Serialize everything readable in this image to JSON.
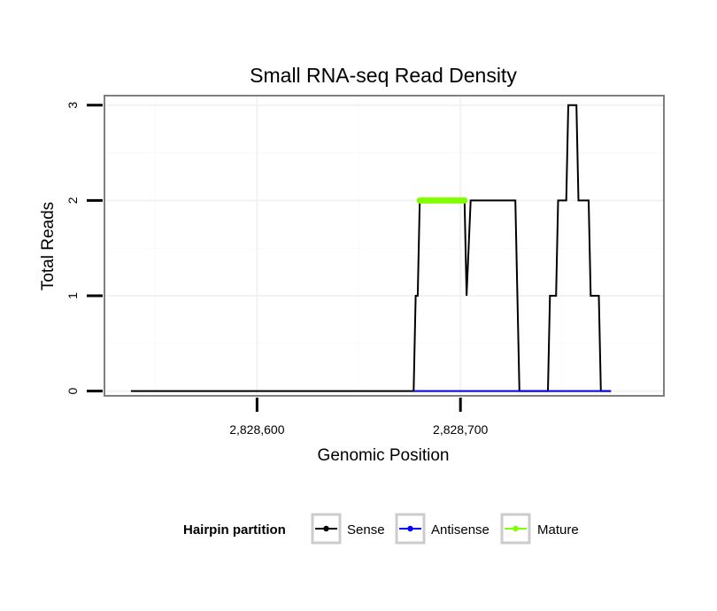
{
  "chart_data": {
    "type": "line",
    "title": "Small RNA-seq Read Density",
    "xlabel": "Genomic Position",
    "ylabel": "Total Reads",
    "xlim": [
      2828525,
      2828800
    ],
    "ylim": [
      -0.05,
      3.1
    ],
    "x_ticks": [
      2828600,
      2828700
    ],
    "x_tick_labels": [
      "2,828,600",
      "2,828,700"
    ],
    "y_ticks": [
      0,
      1,
      2,
      3
    ],
    "y_tick_labels": [
      "0",
      "1",
      "2",
      "3"
    ],
    "grid": true,
    "legend": {
      "title": "Hairpin partition",
      "placement": "bottom",
      "entries": [
        {
          "name": "Sense",
          "color": "#000000"
        },
        {
          "name": "Antisense",
          "color": "#0000ff"
        },
        {
          "name": "Mature",
          "color": "#7fff00"
        }
      ]
    },
    "series": [
      {
        "name": "Sense",
        "color": "#000000",
        "x": [
          2828538,
          2828677,
          2828678,
          2828679,
          2828680,
          2828702,
          2828703,
          2828705,
          2828727,
          2828729,
          2828743,
          2828744,
          2828747,
          2828748,
          2828752,
          2828753,
          2828757,
          2828758,
          2828763,
          2828764,
          2828768,
          2828769,
          2828773,
          2828774
        ],
        "values": [
          0,
          0,
          1,
          1,
          2,
          2,
          1,
          2,
          2,
          0,
          0,
          1,
          1,
          2,
          2,
          3,
          3,
          2,
          2,
          1,
          1,
          0,
          0,
          0
        ]
      },
      {
        "name": "Antisense",
        "color": "#0000ff",
        "x": [
          2828677,
          2828727,
          2828743,
          2828774
        ],
        "values": [
          0,
          0,
          0,
          0
        ]
      },
      {
        "name": "Mature",
        "color": "#7fff00",
        "x": [
          2828680,
          2828702
        ],
        "values": [
          2,
          2
        ]
      }
    ]
  }
}
